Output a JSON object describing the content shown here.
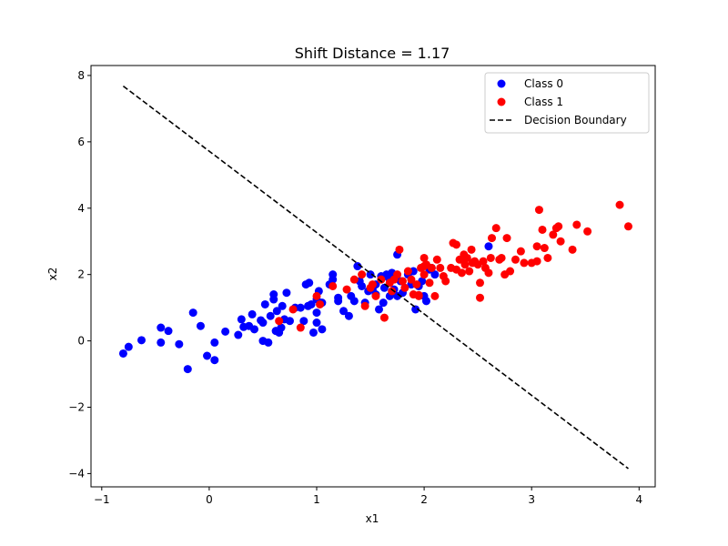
{
  "chart_data": {
    "type": "scatter",
    "title": "Shift Distance = 1.17",
    "xlabel": "x1",
    "ylabel": "x2",
    "xlim": [
      -1.1,
      4.15
    ],
    "ylim": [
      -4.4,
      8.3
    ],
    "xticks": [
      -1,
      0,
      1,
      2,
      3,
      4
    ],
    "xtick_labels": [
      "−1",
      "0",
      "1",
      "2",
      "3",
      "4"
    ],
    "yticks": [
      -4,
      -2,
      0,
      2,
      4,
      6,
      8
    ],
    "ytick_labels": [
      "−4",
      "−2",
      "0",
      "2",
      "4",
      "6",
      "8"
    ],
    "grid": false,
    "legend_placement": "top-right",
    "series": [
      {
        "name": "Class 0",
        "kind": "scatter",
        "color": "#0000ff",
        "points": [
          [
            -0.8,
            -0.38
          ],
          [
            -0.75,
            -0.18
          ],
          [
            -0.63,
            0.02
          ],
          [
            -0.45,
            0.4
          ],
          [
            -0.45,
            -0.05
          ],
          [
            -0.38,
            0.3
          ],
          [
            -0.28,
            -0.1
          ],
          [
            -0.2,
            -0.85
          ],
          [
            -0.15,
            0.85
          ],
          [
            -0.08,
            0.45
          ],
          [
            -0.02,
            -0.45
          ],
          [
            0.05,
            -0.58
          ],
          [
            0.05,
            -0.05
          ],
          [
            0.15,
            0.28
          ],
          [
            0.27,
            0.18
          ],
          [
            0.3,
            0.65
          ],
          [
            0.32,
            0.42
          ],
          [
            0.37,
            0.45
          ],
          [
            0.4,
            0.8
          ],
          [
            0.42,
            0.35
          ],
          [
            0.48,
            0.62
          ],
          [
            0.5,
            0.55
          ],
          [
            0.5,
            0.0
          ],
          [
            0.52,
            1.1
          ],
          [
            0.55,
            -0.05
          ],
          [
            0.57,
            0.75
          ],
          [
            0.6,
            1.4
          ],
          [
            0.6,
            1.25
          ],
          [
            0.62,
            0.3
          ],
          [
            0.63,
            0.9
          ],
          [
            0.65,
            0.25
          ],
          [
            0.67,
            0.4
          ],
          [
            0.68,
            1.05
          ],
          [
            0.7,
            0.65
          ],
          [
            0.72,
            1.45
          ],
          [
            0.75,
            0.6
          ],
          [
            0.8,
            1.0
          ],
          [
            0.85,
            1.0
          ],
          [
            0.88,
            0.6
          ],
          [
            0.9,
            1.7
          ],
          [
            0.92,
            1.05
          ],
          [
            0.93,
            1.75
          ],
          [
            0.95,
            1.1
          ],
          [
            0.97,
            0.25
          ],
          [
            1.0,
            0.85
          ],
          [
            1.0,
            1.25
          ],
          [
            1.0,
            0.55
          ],
          [
            1.02,
            1.5
          ],
          [
            1.05,
            0.35
          ],
          [
            1.05,
            1.15
          ],
          [
            1.15,
            1.85
          ],
          [
            1.15,
            2.0
          ],
          [
            1.2,
            1.3
          ],
          [
            1.2,
            1.2
          ],
          [
            1.25,
            0.9
          ],
          [
            1.3,
            0.75
          ],
          [
            1.32,
            1.35
          ],
          [
            1.35,
            1.2
          ],
          [
            1.38,
            2.25
          ],
          [
            1.4,
            1.8
          ],
          [
            1.42,
            1.65
          ],
          [
            1.45,
            1.15
          ],
          [
            1.48,
            1.5
          ],
          [
            1.5,
            2.0
          ],
          [
            1.52,
            1.55
          ],
          [
            1.55,
            1.4
          ],
          [
            1.55,
            1.7
          ],
          [
            1.58,
            0.95
          ],
          [
            1.6,
            1.95
          ],
          [
            1.62,
            1.15
          ],
          [
            1.63,
            1.6
          ],
          [
            1.65,
            2.0
          ],
          [
            1.67,
            1.9
          ],
          [
            1.7,
            2.05
          ],
          [
            1.72,
            1.55
          ],
          [
            1.75,
            1.35
          ],
          [
            1.75,
            2.6
          ],
          [
            1.78,
            1.8
          ],
          [
            1.8,
            1.45
          ],
          [
            1.85,
            2.0
          ],
          [
            1.88,
            1.7
          ],
          [
            1.9,
            2.1
          ],
          [
            1.92,
            0.95
          ],
          [
            1.95,
            1.65
          ],
          [
            1.98,
            1.8
          ],
          [
            2.0,
            1.35
          ],
          [
            2.02,
            1.2
          ],
          [
            2.05,
            2.15
          ],
          [
            2.07,
            2.2
          ],
          [
            2.1,
            2.0
          ],
          [
            2.6,
            2.85
          ],
          [
            1.68,
            1.35
          ],
          [
            1.12,
            1.7
          ]
        ]
      },
      {
        "name": "Class 1",
        "kind": "scatter",
        "color": "#ff0000",
        "points": [
          [
            0.65,
            0.6
          ],
          [
            0.78,
            0.95
          ],
          [
            0.85,
            0.4
          ],
          [
            1.0,
            1.35
          ],
          [
            1.03,
            1.1
          ],
          [
            1.15,
            1.65
          ],
          [
            1.28,
            1.55
          ],
          [
            1.35,
            1.85
          ],
          [
            1.42,
            2.0
          ],
          [
            1.45,
            1.05
          ],
          [
            1.5,
            1.6
          ],
          [
            1.52,
            1.7
          ],
          [
            1.55,
            1.35
          ],
          [
            1.6,
            1.85
          ],
          [
            1.63,
            0.7
          ],
          [
            1.68,
            1.75
          ],
          [
            1.7,
            1.5
          ],
          [
            1.72,
            1.85
          ],
          [
            1.75,
            2.0
          ],
          [
            1.77,
            2.75
          ],
          [
            1.8,
            1.8
          ],
          [
            1.82,
            1.6
          ],
          [
            1.85,
            2.1
          ],
          [
            1.88,
            1.85
          ],
          [
            1.9,
            1.4
          ],
          [
            1.93,
            1.7
          ],
          [
            1.95,
            1.35
          ],
          [
            1.97,
            2.2
          ],
          [
            2.0,
            2.0
          ],
          [
            2.0,
            2.5
          ],
          [
            2.02,
            2.3
          ],
          [
            2.05,
            1.75
          ],
          [
            2.07,
            2.2
          ],
          [
            2.1,
            1.35
          ],
          [
            2.12,
            2.45
          ],
          [
            2.15,
            2.2
          ],
          [
            2.18,
            1.95
          ],
          [
            2.2,
            1.8
          ],
          [
            2.25,
            2.2
          ],
          [
            2.27,
            2.95
          ],
          [
            2.3,
            2.9
          ],
          [
            2.3,
            2.15
          ],
          [
            2.33,
            2.45
          ],
          [
            2.35,
            2.05
          ],
          [
            2.37,
            2.6
          ],
          [
            2.38,
            2.3
          ],
          [
            2.4,
            2.5
          ],
          [
            2.42,
            2.1
          ],
          [
            2.44,
            2.75
          ],
          [
            2.45,
            2.35
          ],
          [
            2.47,
            2.4
          ],
          [
            2.5,
            2.3
          ],
          [
            2.52,
            1.75
          ],
          [
            2.52,
            1.3
          ],
          [
            2.55,
            2.4
          ],
          [
            2.57,
            2.2
          ],
          [
            2.6,
            2.05
          ],
          [
            2.62,
            2.5
          ],
          [
            2.63,
            3.1
          ],
          [
            2.67,
            3.4
          ],
          [
            2.7,
            2.45
          ],
          [
            2.72,
            2.5
          ],
          [
            2.75,
            2.0
          ],
          [
            2.77,
            3.1
          ],
          [
            2.8,
            2.1
          ],
          [
            2.85,
            2.45
          ],
          [
            2.9,
            2.7
          ],
          [
            2.93,
            2.35
          ],
          [
            3.0,
            2.35
          ],
          [
            3.05,
            2.85
          ],
          [
            3.05,
            2.4
          ],
          [
            3.07,
            3.95
          ],
          [
            3.1,
            3.35
          ],
          [
            3.12,
            2.8
          ],
          [
            3.15,
            2.5
          ],
          [
            3.2,
            3.2
          ],
          [
            3.23,
            3.4
          ],
          [
            3.25,
            3.45
          ],
          [
            3.27,
            3.0
          ],
          [
            3.38,
            2.75
          ],
          [
            3.42,
            3.5
          ],
          [
            3.52,
            3.3
          ],
          [
            3.82,
            4.1
          ],
          [
            3.9,
            3.45
          ],
          [
            2.35,
            2.45
          ],
          [
            2.0,
            2.25
          ],
          [
            1.95,
            1.38
          ]
        ]
      },
      {
        "name": "Decision Boundary",
        "kind": "line",
        "style": "dashed",
        "color": "#000000",
        "points": [
          [
            -0.8,
            7.68
          ],
          [
            3.9,
            -3.85
          ]
        ]
      }
    ]
  }
}
